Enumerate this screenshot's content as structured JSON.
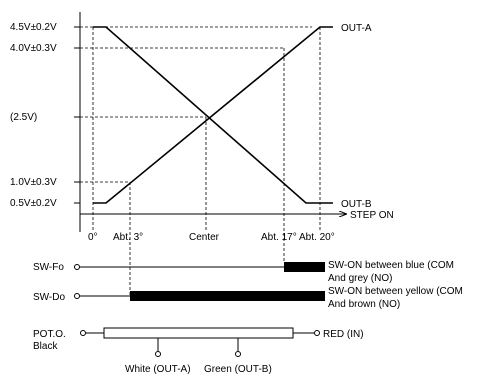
{
  "chart_data": {
    "type": "line",
    "x_categories": [
      "0°",
      "Abt. 3°",
      "Center",
      "Abt. 17°",
      "Abt. 20°"
    ],
    "x_axis_label": "STEP ON",
    "y_tick_labels": [
      "4.5V±0.2V",
      "4.0V±0.3V",
      "(2.5V)",
      "1.0V±0.3V",
      "0.5V±0.2V"
    ],
    "series": [
      {
        "name": "OUT-A",
        "points": [
          [
            "0°",
            0.5
          ],
          [
            "Abt. 3°",
            1.0
          ],
          [
            "Center",
            2.5
          ],
          [
            "Abt. 17°",
            4.0
          ],
          [
            "Abt. 20°",
            4.5
          ]
        ]
      },
      {
        "name": "OUT-B",
        "points": [
          [
            "0°",
            4.5
          ],
          [
            "Abt. 3°",
            4.0
          ],
          [
            "Center",
            2.5
          ],
          [
            "Abt. 17°",
            1.0
          ],
          [
            "Abt. 20°",
            0.5
          ]
        ]
      }
    ]
  },
  "switches": [
    {
      "name": "SW-Fo",
      "active_from": "Abt. 17°",
      "active_to": "end",
      "desc_line1": "SW-ON between blue (COM",
      "desc_line2": "And grey (NO)"
    },
    {
      "name": "SW-Do",
      "active_from": "Abt. 3°",
      "active_to": "end",
      "desc_line1": "SW-ON between yellow (COM",
      "desc_line2": "And brown (NO)"
    }
  ],
  "pot": {
    "label_line1": "POT.O.",
    "label_line2": "Black",
    "right_label": "RED (IN)",
    "tap_a_label": "White (OUT-A)",
    "tap_b_label": "Green  (OUT-B)"
  }
}
